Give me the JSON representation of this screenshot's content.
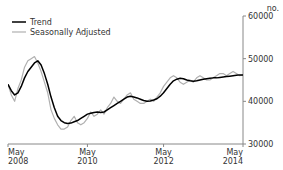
{
  "chart_data": {
    "type": "line",
    "title": "",
    "ylabel": "no.",
    "categories": [
      "May\n2008",
      null,
      null,
      null,
      null,
      null,
      null,
      null,
      null,
      null,
      null,
      null,
      null,
      null,
      null,
      null,
      null,
      null,
      null,
      null,
      null,
      null,
      null,
      null,
      "May\n2010",
      null,
      null,
      null,
      null,
      null,
      null,
      null,
      null,
      null,
      null,
      null,
      null,
      null,
      null,
      null,
      null,
      null,
      null,
      null,
      null,
      null,
      null,
      "May\n2012",
      null,
      null,
      null,
      null,
      null,
      null,
      null,
      null,
      null,
      null,
      null,
      null,
      null,
      null,
      null,
      null,
      null,
      null,
      null,
      null,
      null,
      null,
      null,
      "May\n2014"
    ],
    "series": [
      {
        "name": "Trend",
        "color": "#000000",
        "values": [
          44000,
          42500,
          41500,
          42000,
          43500,
          45500,
          47000,
          48000,
          49000,
          49500,
          48500,
          46500,
          44000,
          41000,
          38500,
          36500,
          35500,
          35000,
          34800,
          34900,
          35200,
          35500,
          36000,
          36500,
          37000,
          37200,
          37400,
          37500,
          37400,
          37500,
          38000,
          38500,
          39000,
          39500,
          40000,
          40500,
          41000,
          41200,
          41000,
          40800,
          40500,
          40200,
          40000,
          40100,
          40300,
          40600,
          41200,
          42000,
          43000,
          44000,
          44800,
          45200,
          45400,
          45300,
          45000,
          44800,
          44700,
          44800,
          45000,
          45200,
          45300,
          45400,
          45500,
          45500,
          45600,
          45700,
          45800,
          45900,
          46000,
          46100,
          46200,
          46200
        ]
      },
      {
        "name": "Seasonally Adjusted",
        "color": "#b0b0b0",
        "values": [
          44000,
          41500,
          40000,
          43000,
          45000,
          48000,
          49500,
          50000,
          50500,
          49000,
          47000,
          44500,
          42000,
          38000,
          36000,
          34500,
          33500,
          33500,
          34000,
          35500,
          36500,
          35000,
          34500,
          35000,
          36000,
          37500,
          36500,
          37000,
          38000,
          37000,
          38500,
          39500,
          41000,
          40000,
          39500,
          40500,
          41500,
          42000,
          40500,
          40000,
          39500,
          39500,
          40000,
          40500,
          40000,
          41000,
          42000,
          43500,
          44500,
          45500,
          46000,
          45500,
          44500,
          44000,
          44500,
          45000,
          44500,
          45500,
          46000,
          45500,
          45000,
          45000,
          45500,
          46000,
          46500,
          46500,
          46000,
          46500,
          47000,
          46500,
          46000,
          46200
        ]
      }
    ],
    "ylim": [
      30000,
      60000
    ],
    "yticks": [
      30000,
      40000,
      50000,
      60000
    ],
    "grid": false,
    "legend": "upper left"
  }
}
